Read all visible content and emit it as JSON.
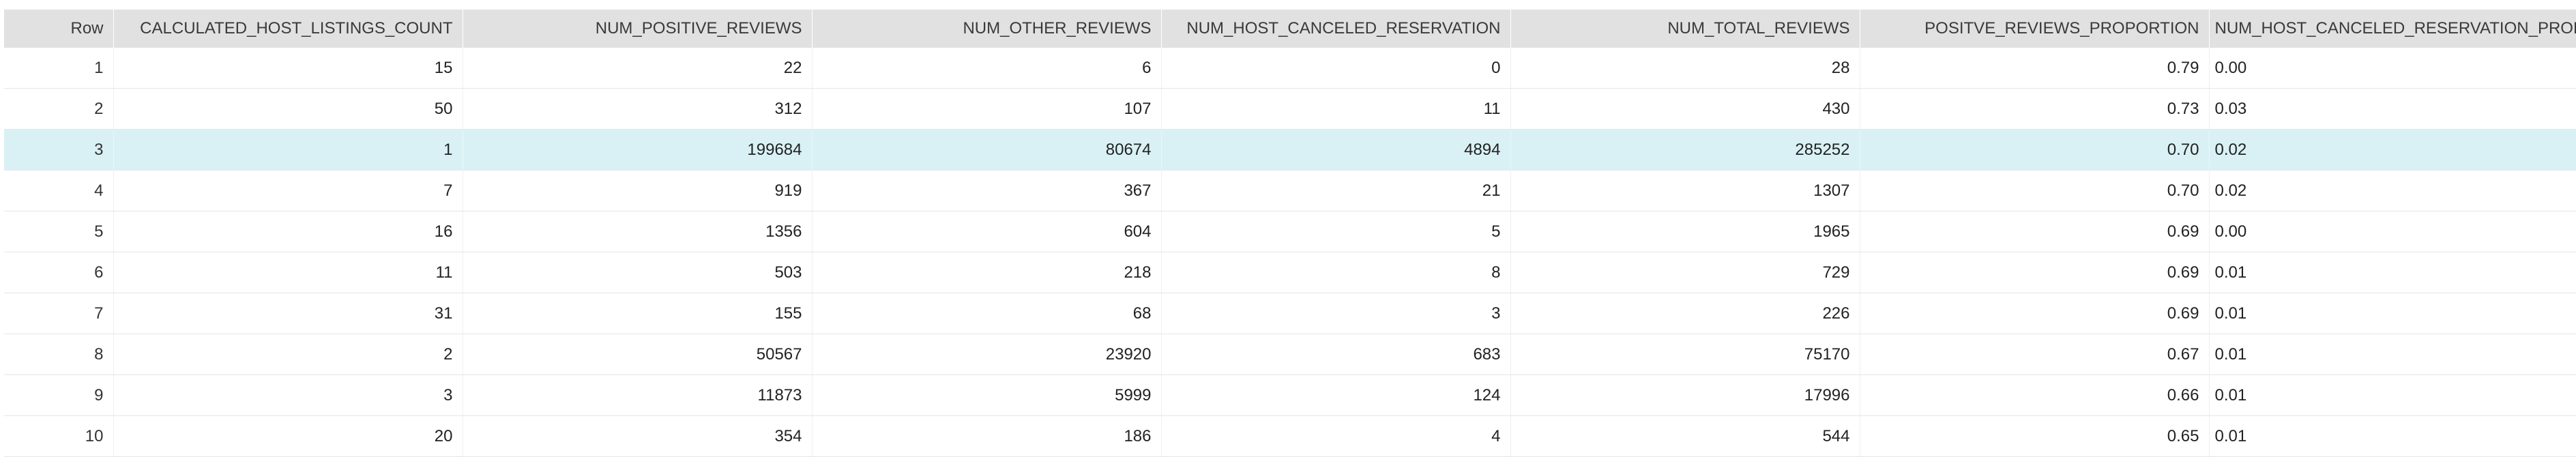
{
  "grid": {
    "columns": [
      "Row",
      "CALCULATED_HOST_LISTINGS_COUNT",
      "NUM_POSITIVE_REVIEWS",
      "NUM_OTHER_REVIEWS",
      "NUM_HOST_CANCELED_RESERVATION",
      "NUM_TOTAL_REVIEWS",
      "POSITVE_REVIEWS_PROPORTION",
      "NUM_HOST_CANCELED_RESERVATION_PROPORTION"
    ],
    "selected_row": 3,
    "rows": [
      [
        "1",
        "15",
        "22",
        "6",
        "0",
        "28",
        "0.79",
        "0.00"
      ],
      [
        "2",
        "50",
        "312",
        "107",
        "11",
        "430",
        "0.73",
        "0.03"
      ],
      [
        "3",
        "1",
        "199684",
        "80674",
        "4894",
        "285252",
        "0.70",
        "0.02"
      ],
      [
        "4",
        "7",
        "919",
        "367",
        "21",
        "1307",
        "0.70",
        "0.02"
      ],
      [
        "5",
        "16",
        "1356",
        "604",
        "5",
        "1965",
        "0.69",
        "0.00"
      ],
      [
        "6",
        "11",
        "503",
        "218",
        "8",
        "729",
        "0.69",
        "0.01"
      ],
      [
        "7",
        "31",
        "155",
        "68",
        "3",
        "226",
        "0.69",
        "0.01"
      ],
      [
        "8",
        "2",
        "50567",
        "23920",
        "683",
        "75170",
        "0.67",
        "0.01"
      ],
      [
        "9",
        "3",
        "11873",
        "5999",
        "124",
        "17996",
        "0.66",
        "0.01"
      ],
      [
        "10",
        "20",
        "354",
        "186",
        "4",
        "544",
        "0.65",
        "0.01"
      ]
    ]
  }
}
